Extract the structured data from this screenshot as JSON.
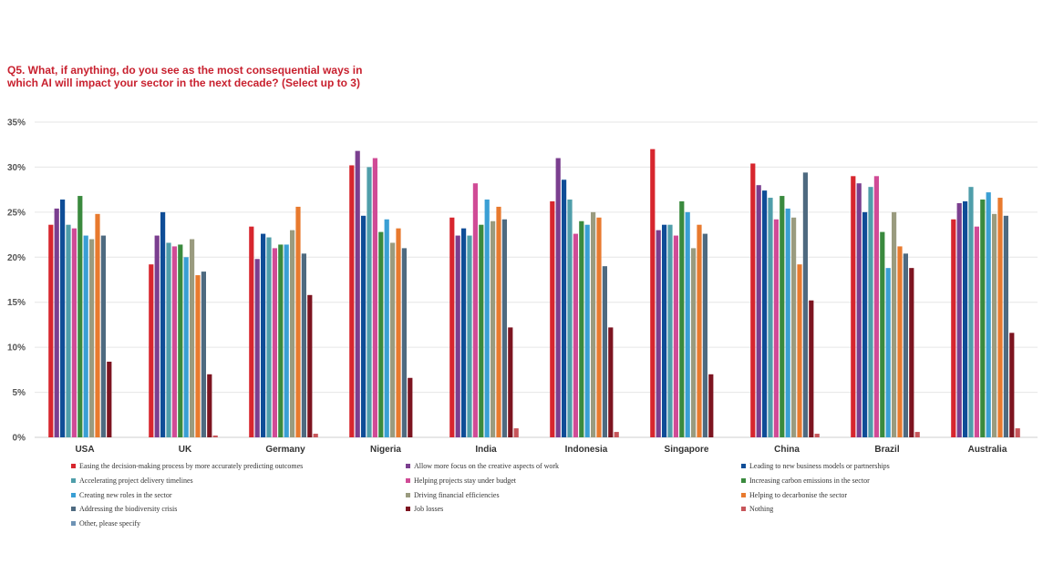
{
  "chart_data": {
    "type": "bar",
    "title": "Q5. What, if anything, do you see as the most consequential ways in which AI will impact your sector in the next decade? (Select up to 3)",
    "categories": [
      "USA",
      "UK",
      "Germany",
      "Nigeria",
      "India",
      "Indonesia",
      "Singapore",
      "China",
      "Brazil",
      "Australia"
    ],
    "y_ticks": [
      "0%",
      "5%",
      "10%",
      "15%",
      "20%",
      "25%",
      "30%",
      "35%"
    ],
    "ylim": [
      0,
      35
    ],
    "grid": true,
    "legend_position": "bottom",
    "series": [
      {
        "name": "Easing the decision-making process by more accurately predicting outcomes",
        "color": "#d7262e",
        "values": [
          23.6,
          19.2,
          23.4,
          30.2,
          24.4,
          26.2,
          32.0,
          30.4,
          29.0,
          24.2
        ]
      },
      {
        "name": "Allow more focus on the creative aspects of work",
        "color": "#7b3f8f",
        "values": [
          25.4,
          22.4,
          19.8,
          31.8,
          22.4,
          31.0,
          23.0,
          28.0,
          28.2,
          26.0
        ]
      },
      {
        "name": "Leading to new business models or partnerships",
        "color": "#0f4d97",
        "values": [
          26.4,
          25.0,
          22.6,
          24.6,
          23.2,
          28.6,
          23.6,
          27.4,
          25.0,
          26.2
        ]
      },
      {
        "name": "Accelerating project delivery timelines",
        "color": "#4f9eaa",
        "values": [
          23.6,
          21.6,
          22.2,
          30.0,
          22.4,
          26.4,
          23.6,
          26.6,
          27.8,
          27.8
        ]
      },
      {
        "name": "Helping projects stay under budget",
        "color": "#d04b96",
        "values": [
          23.2,
          21.2,
          21.0,
          31.0,
          28.2,
          22.6,
          22.4,
          24.2,
          29.0,
          23.4
        ]
      },
      {
        "name": "Increasing carbon emissions in the sector",
        "color": "#3a8a3e",
        "values": [
          26.8,
          21.4,
          21.4,
          22.8,
          23.6,
          24.0,
          26.2,
          26.8,
          22.8,
          26.4
        ]
      },
      {
        "name": "Creating new roles in the sector",
        "color": "#3a9fd4",
        "values": [
          22.4,
          20.0,
          21.4,
          24.2,
          26.4,
          23.6,
          25.0,
          25.4,
          18.8,
          27.2
        ]
      },
      {
        "name": "Driving financial efficiencies",
        "color": "#9a9b7f",
        "values": [
          22.0,
          22.0,
          23.0,
          21.6,
          24.0,
          25.0,
          21.0,
          24.4,
          25.0,
          24.8
        ]
      },
      {
        "name": "Helping to decarbonise the sector",
        "color": "#e87a2e",
        "values": [
          24.8,
          18.0,
          25.6,
          23.2,
          25.6,
          24.4,
          23.6,
          19.2,
          21.2,
          26.6
        ]
      },
      {
        "name": "Addressing the biodiversity crisis",
        "color": "#4e6a80",
        "values": [
          22.4,
          18.4,
          20.4,
          21.0,
          24.2,
          19.0,
          22.6,
          29.4,
          20.4,
          24.6
        ]
      },
      {
        "name": "Job losses",
        "color": "#7d1420",
        "values": [
          8.4,
          7.0,
          15.8,
          6.6,
          12.2,
          12.2,
          7.0,
          15.2,
          18.8,
          11.6
        ]
      },
      {
        "name": "Nothing",
        "color": "#c7555a",
        "values": [
          0.0,
          0.2,
          0.4,
          0.0,
          1.0,
          0.6,
          0.0,
          0.4,
          0.6,
          1.0
        ]
      },
      {
        "name": "Other, please specify",
        "color": "#6e93b5",
        "values": [
          0,
          0,
          0,
          0,
          0,
          0,
          0,
          0,
          0,
          0
        ]
      }
    ]
  }
}
